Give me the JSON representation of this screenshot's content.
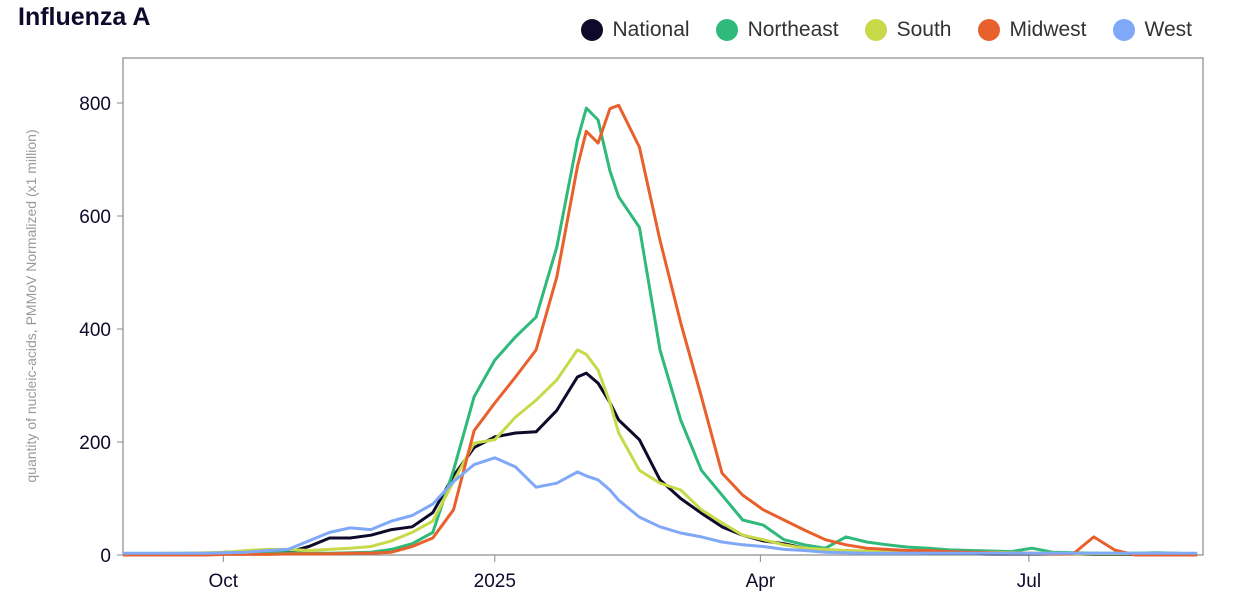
{
  "chart_data": {
    "type": "line",
    "title": "Influenza A",
    "xlabel": "",
    "ylabel": "quantity of nucleic-acids, PMMoV Normalized (x1 million)",
    "ylim": [
      0,
      880
    ],
    "xlim": [
      "2024-08-28",
      "2025-08-29"
    ],
    "yticks": [
      0,
      200,
      400,
      600,
      800
    ],
    "xticks": [
      {
        "date": "2024-10-01",
        "label": "Oct"
      },
      {
        "date": "2025-01-01",
        "label": "2025"
      },
      {
        "date": "2025-04-01",
        "label": "Apr"
      },
      {
        "date": "2025-07-01",
        "label": "Jul"
      }
    ],
    "grid": false,
    "legend_position": "top-right",
    "x": [
      "2024-08-28",
      "2024-09-04",
      "2024-09-11",
      "2024-09-18",
      "2024-09-25",
      "2024-10-02",
      "2024-10-09",
      "2024-10-16",
      "2024-10-23",
      "2024-10-30",
      "2024-11-06",
      "2024-11-13",
      "2024-11-20",
      "2024-11-27",
      "2024-12-04",
      "2024-12-11",
      "2024-12-18",
      "2024-12-25",
      "2025-01-01",
      "2025-01-08",
      "2025-01-15",
      "2025-01-22",
      "2025-01-29",
      "2025-02-01",
      "2025-02-05",
      "2025-02-09",
      "2025-02-12",
      "2025-02-19",
      "2025-02-26",
      "2025-03-05",
      "2025-03-12",
      "2025-03-19",
      "2025-03-26",
      "2025-04-02",
      "2025-04-09",
      "2025-04-16",
      "2025-04-23",
      "2025-04-30",
      "2025-05-07",
      "2025-05-14",
      "2025-05-21",
      "2025-05-28",
      "2025-06-04",
      "2025-06-11",
      "2025-06-18",
      "2025-06-25",
      "2025-07-02",
      "2025-07-09",
      "2025-07-16",
      "2025-07-23",
      "2025-07-30",
      "2025-08-06",
      "2025-08-13",
      "2025-08-20",
      "2025-08-27"
    ],
    "series": [
      {
        "name": "National",
        "color": "#0d0a2b",
        "values": [
          0,
          0,
          1,
          2,
          3,
          5,
          5,
          3,
          5,
          15,
          30,
          30,
          35,
          45,
          50,
          75,
          140,
          190,
          209,
          216,
          218,
          256,
          315,
          322,
          304,
          270,
          239,
          204,
          133,
          100,
          74,
          50,
          35,
          25,
          20,
          12,
          8,
          8,
          5,
          5,
          4,
          3,
          3,
          3,
          2,
          2,
          2,
          2,
          2,
          1,
          1,
          1,
          1,
          1,
          1
        ]
      },
      {
        "name": "Northeast",
        "color": "#2fb97a",
        "values": [
          2,
          2,
          2,
          3,
          3,
          3,
          4,
          5,
          4,
          3,
          3,
          4,
          5,
          10,
          20,
          40,
          150,
          280,
          345,
          386,
          421,
          545,
          734,
          791,
          770,
          680,
          634,
          580,
          363,
          239,
          150,
          106,
          62,
          53,
          27,
          18,
          12,
          32,
          23,
          18,
          14,
          12,
          9,
          8,
          7,
          6,
          12,
          5,
          4,
          3,
          3,
          3,
          4,
          3,
          2
        ]
      },
      {
        "name": "South",
        "color": "#c8d94a",
        "values": [
          2,
          2,
          3,
          3,
          4,
          5,
          8,
          10,
          10,
          8,
          10,
          12,
          15,
          25,
          40,
          60,
          130,
          198,
          204,
          244,
          274,
          310,
          363,
          355,
          327,
          270,
          216,
          150,
          127,
          115,
          80,
          57,
          35,
          27,
          18,
          12,
          10,
          8,
          7,
          6,
          5,
          5,
          4,
          4,
          5,
          4,
          3,
          3,
          2,
          2,
          2,
          2,
          2,
          2,
          1
        ]
      },
      {
        "name": "Midwest",
        "color": "#e8612c",
        "values": [
          0,
          0,
          0,
          0,
          0,
          1,
          1,
          1,
          2,
          2,
          2,
          3,
          3,
          5,
          15,
          30,
          80,
          220,
          269,
          315,
          363,
          492,
          687,
          750,
          729,
          790,
          796,
          722,
          557,
          411,
          280,
          145,
          106,
          80,
          62,
          44,
          27,
          18,
          12,
          10,
          8,
          8,
          6,
          5,
          4,
          3,
          3,
          2,
          2,
          32,
          9,
          0,
          0,
          0,
          0
        ]
      },
      {
        "name": "West",
        "color": "#7fa8f8",
        "values": [
          3,
          3,
          3,
          3,
          3,
          4,
          5,
          8,
          10,
          25,
          40,
          48,
          45,
          60,
          70,
          90,
          130,
          160,
          172,
          156,
          120,
          127,
          147,
          140,
          133,
          115,
          97,
          67,
          50,
          39,
          32,
          23,
          18,
          15,
          10,
          8,
          5,
          4,
          3,
          3,
          3,
          3,
          3,
          3,
          3,
          3,
          3,
          3,
          3,
          3,
          3,
          3,
          3,
          3,
          3
        ]
      }
    ]
  }
}
